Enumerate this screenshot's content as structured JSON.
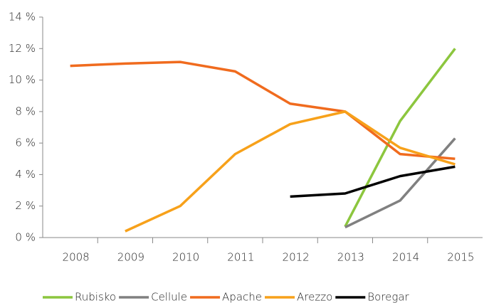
{
  "chart_data": {
    "type": "line",
    "categories": [
      "2008",
      "2009",
      "2010",
      "2011",
      "2012",
      "2013",
      "2014",
      "2015"
    ],
    "series": [
      {
        "name": "Rubisko",
        "color": "#8cc63e",
        "values": [
          null,
          null,
          null,
          null,
          null,
          0.7,
          7.4,
          12.0
        ]
      },
      {
        "name": "Cellule",
        "color": "#808080",
        "values": [
          null,
          null,
          null,
          null,
          null,
          0.65,
          2.35,
          6.3
        ]
      },
      {
        "name": "Apache",
        "color": "#f06b1e",
        "values": [
          10.9,
          11.05,
          11.15,
          10.55,
          8.5,
          8.0,
          5.3,
          5.0
        ]
      },
      {
        "name": "Arezzo",
        "color": "#f7a11a",
        "values": [
          null,
          0.4,
          2.0,
          5.3,
          7.2,
          8.0,
          5.7,
          4.65
        ]
      },
      {
        "name": "Boregar",
        "color": "#000000",
        "values": [
          null,
          null,
          null,
          null,
          2.6,
          2.8,
          3.9,
          4.5
        ]
      }
    ],
    "ylim": [
      0,
      14
    ],
    "yticks": [
      {
        "value": 0,
        "label": "0 %"
      },
      {
        "value": 2,
        "label": "2 %"
      },
      {
        "value": 4,
        "label": "4 %"
      },
      {
        "value": 6,
        "label": "6 %"
      },
      {
        "value": 8,
        "label": "8 %"
      },
      {
        "value": 10,
        "label": "10 %"
      },
      {
        "value": 12,
        "label": "12 %"
      },
      {
        "value": 14,
        "label": "14 %"
      }
    ],
    "grid": false,
    "legend": "bottom"
  }
}
